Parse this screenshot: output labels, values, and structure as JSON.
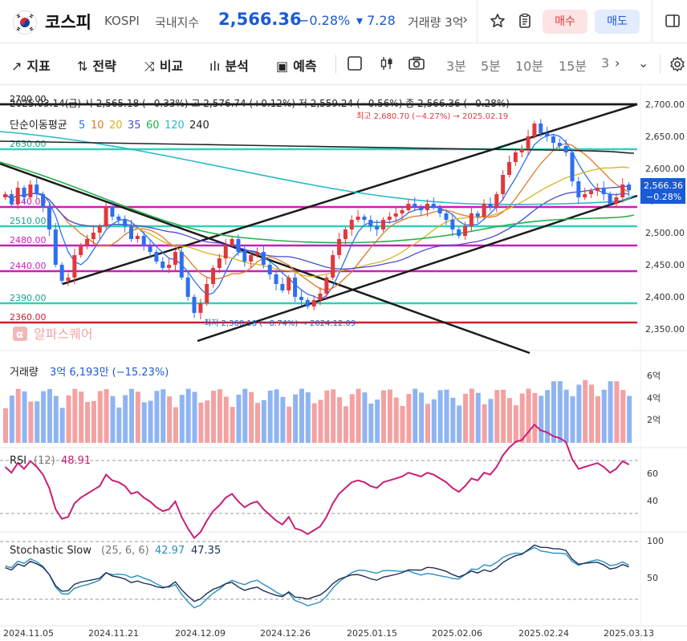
{
  "header": {
    "title": "코스피",
    "symbol": "KOSPI",
    "index_type": "국내지수",
    "price": "2,566.36",
    "change_pct": "−0.28%",
    "change_abs": "▾ 7.28",
    "volume_label": "거래량 3억",
    "buy_label": "매수",
    "sell_label": "매도"
  },
  "toolbar": {
    "indicator_label": "지표",
    "strategy_label": "전략",
    "compare_label": "비교",
    "analysis_label": "분석",
    "forecast_label": "예측",
    "timeframes": [
      "3분",
      "5분",
      "10분",
      "15분",
      "3"
    ]
  },
  "chart": {
    "ohlc_line": "2025.03.14(금) 시 2,565.18 (−0.33%) 고 2,576.74 (+0.12%) 저 2,559.24 (−0.56%) 종 2,566.36 (−0.28%)",
    "ma_label": "단순이동평균",
    "ma_periods": [
      {
        "label": "5",
        "color": "#2d6ff0"
      },
      {
        "label": "10",
        "color": "#e0782a"
      },
      {
        "label": "20",
        "color": "#d9b21c"
      },
      {
        "label": "35",
        "color": "#4c4ccf"
      },
      {
        "label": "60",
        "color": "#23b04a"
      },
      {
        "label": "120",
        "color": "#29b8c8"
      },
      {
        "label": "240",
        "color": "#222222"
      }
    ],
    "high_note": "최고 2,680.70 (−4.27%) → 2025.02.19",
    "low_note": "최저 2,360.18 (−8.74%) → 2024.12.09",
    "watermark": "알파스퀘어",
    "price_axis": [
      "2,700.00",
      "2,650.00",
      "2,600.00",
      "2,550.00",
      "2,500.00",
      "2,450.00",
      "2,400.00",
      "2,350.00"
    ],
    "current_price_tag": "2,566.36",
    "current_change_tag": "−0.28%",
    "levels": [
      {
        "label": "2700.00",
        "price": 2700,
        "color": "#111111"
      },
      {
        "label": "2630.00",
        "price": 2630,
        "color": "#2ed3b8"
      },
      {
        "label": "2540.00",
        "price": 2540,
        "color": "#c81fb8"
      },
      {
        "label": "2510.00",
        "price": 2510,
        "color": "#2ed3b8"
      },
      {
        "label": "2480.00",
        "price": 2480,
        "color": "#c81fb8"
      },
      {
        "label": "2440.00",
        "price": 2440,
        "color": "#c81fb8"
      },
      {
        "label": "2390.00",
        "price": 2390,
        "color": "#2ed3b8"
      },
      {
        "label": "2360.00",
        "price": 2360,
        "color": "#d21f2a"
      }
    ]
  },
  "volume_panel": {
    "label": "거래량",
    "value": "3억 6,193만 (−15.23%)",
    "axis": [
      "6억",
      "4억",
      "2억"
    ]
  },
  "rsi_panel": {
    "label": "RSI",
    "param": "(12)",
    "value": "48.91",
    "axis": [
      "60",
      "40"
    ]
  },
  "stoch_panel": {
    "label": "Stochastic Slow",
    "param": "(25, 6, 6)",
    "k_value": "42.97",
    "d_value": "47.35",
    "axis": [
      "100",
      "50"
    ]
  },
  "date_axis": [
    "2024.11.05",
    "2024.11.21",
    "2024.12.09",
    "2024.12.26",
    "2025.01.15",
    "2025.02.06",
    "2025.02.24",
    "2025.03.13"
  ]
}
